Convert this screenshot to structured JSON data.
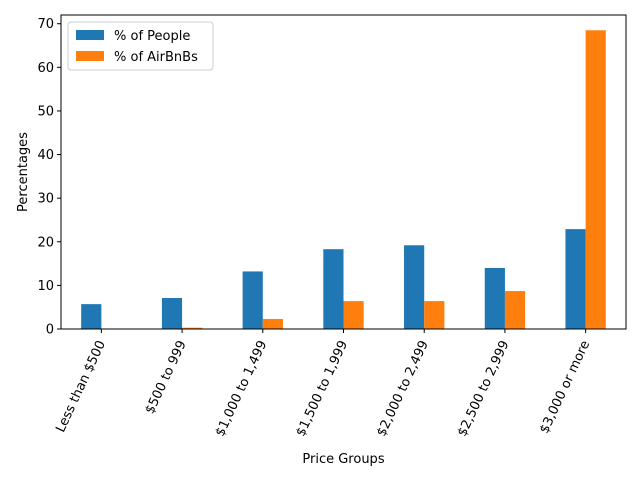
{
  "chart_data": {
    "type": "bar",
    "title": "",
    "xlabel": "Price Groups",
    "ylabel": "Percentages",
    "categories": [
      "Less than $500",
      "$500 to 999",
      "$1,000 to 1,499",
      "$1,500 to 1,999",
      "$2,000 to 2,499",
      "$2,500 to 2,999",
      "$3,000 or more"
    ],
    "series": [
      {
        "name": "% of People",
        "color": "#1f77b4",
        "values": [
          5.7,
          7.1,
          13.2,
          18.3,
          19.2,
          14.0,
          22.9
        ]
      },
      {
        "name": "% of AirBnBs",
        "color": "#ff7f0e",
        "values": [
          0.0,
          0.3,
          2.3,
          6.4,
          6.4,
          8.7,
          68.5
        ]
      }
    ],
    "ylim": [
      0,
      72
    ],
    "yticks": [
      0,
      10,
      20,
      30,
      40,
      50,
      60,
      70
    ],
    "ytick_labels": [
      "0",
      "10",
      "20",
      "30",
      "40",
      "50",
      "60",
      "70"
    ],
    "legend_position": "top-left",
    "grid": false
  }
}
